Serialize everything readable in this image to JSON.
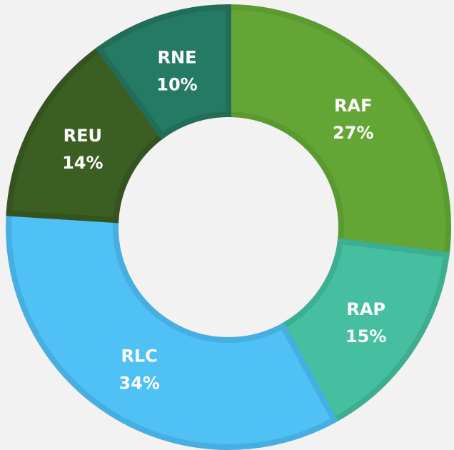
{
  "chart_data": {
    "type": "donut",
    "categories": [
      "RAF",
      "RAP",
      "RLC",
      "REU",
      "RNE"
    ],
    "values": [
      27,
      15,
      34,
      14,
      10
    ],
    "value_labels": [
      "27%",
      "15%",
      "34%",
      "14%",
      "10%"
    ],
    "colors": [
      "#64a636",
      "#45bfa0",
      "#4fc1f5",
      "#3b5e22",
      "#257a63"
    ],
    "stroke_colors": [
      "#5a9a31",
      "#3eae91",
      "#46aee0",
      "#34531e",
      "#216d58"
    ]
  }
}
